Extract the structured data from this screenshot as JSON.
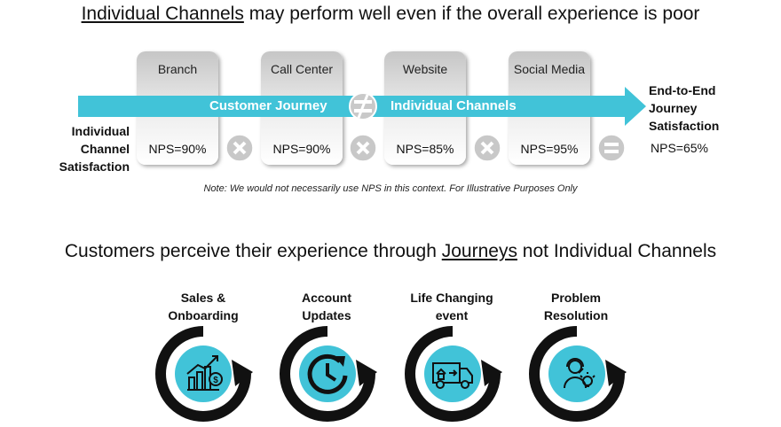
{
  "title_top": {
    "underlined": "Individual Channels",
    "rest": " may perform well even if the overall experience is poor"
  },
  "channels": [
    {
      "name": "Branch",
      "nps": "NPS=90%"
    },
    {
      "name": "Call Center",
      "nps": "NPS=90%"
    },
    {
      "name": "Website",
      "nps": "NPS=85%"
    },
    {
      "name": "Social Media",
      "nps": "NPS=95%"
    }
  ],
  "arrow": {
    "left_text": "Customer Journey",
    "right_text": "Individual Channels",
    "color": "#41c3d8"
  },
  "left_label": [
    "Individual",
    "Channel",
    "Satisfaction"
  ],
  "right_label": [
    "End-to-End",
    "Journey",
    "Satisfaction"
  ],
  "result_nps": "NPS=65%",
  "operators": [
    "multiply-icon",
    "multiply-icon",
    "multiply-icon",
    "equals-icon"
  ],
  "note": "Note: We would not necessarily use NPS in this context. For Illustrative Purposes Only",
  "title_bottom": {
    "before": "Customers perceive their experience through ",
    "underlined": "Journeys",
    "after": " not Individual Channels"
  },
  "journeys": [
    {
      "line1": "Sales &",
      "line2": "Onboarding",
      "icon": "growth-chart-icon"
    },
    {
      "line1": "Account",
      "line2": "Updates",
      "icon": "clock-refresh-icon"
    },
    {
      "line1": "Life Changing",
      "line2": "event",
      "icon": "moving-truck-icon"
    },
    {
      "line1": "Problem",
      "line2": "Resolution",
      "icon": "support-agent-icon"
    }
  ],
  "colors": {
    "accent": "#41c3d8",
    "operator": "#c8c8c8",
    "ring": "#111111"
  }
}
